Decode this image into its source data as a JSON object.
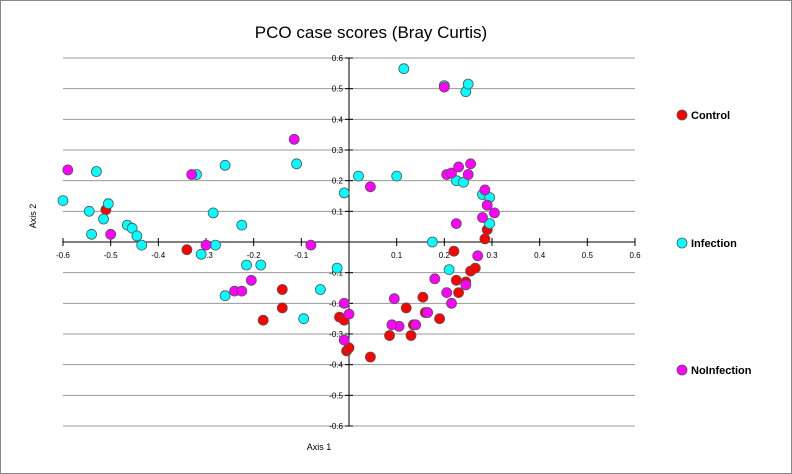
{
  "chart_data": {
    "type": "scatter",
    "title": "PCO case scores (Bray Curtis)",
    "xlabel": "Axis 1",
    "ylabel": "Axis 2",
    "xlim": [
      -0.6,
      0.6
    ],
    "ylim": [
      -0.6,
      0.6
    ],
    "x_ticks": [
      "-0.6",
      "-0.5",
      "-0.4",
      "-0.3",
      "-0.2",
      "-0.1",
      "0.1",
      "0.2",
      "0.3",
      "0.4",
      "0.5",
      "0.6"
    ],
    "y_ticks": [
      "0.6",
      "0.5",
      "0.4",
      "0.3",
      "0.2",
      "0.1",
      "-0.1",
      "-0.2",
      "-0.3",
      "-0.4",
      "-0.5",
      "-0.6"
    ],
    "grid": "horizontal",
    "legend_position": "right",
    "series": [
      {
        "name": "Control",
        "color": "#ff0000",
        "points": [
          [
            -0.51,
            0.105
          ],
          [
            -0.34,
            -0.025
          ],
          [
            -0.14,
            -0.155
          ],
          [
            -0.14,
            -0.215
          ],
          [
            -0.18,
            -0.255
          ],
          [
            -0.02,
            -0.245
          ],
          [
            -0.01,
            -0.255
          ],
          [
            -0.005,
            -0.355
          ],
          [
            0.0,
            -0.345
          ],
          [
            0.045,
            -0.375
          ],
          [
            0.085,
            -0.305
          ],
          [
            0.12,
            -0.215
          ],
          [
            0.13,
            -0.305
          ],
          [
            0.135,
            -0.27
          ],
          [
            0.155,
            -0.18
          ],
          [
            0.16,
            -0.23
          ],
          [
            0.19,
            -0.25
          ],
          [
            0.22,
            -0.03
          ],
          [
            0.225,
            -0.125
          ],
          [
            0.23,
            -0.165
          ],
          [
            0.245,
            -0.13
          ],
          [
            0.255,
            -0.095
          ],
          [
            0.265,
            -0.085
          ],
          [
            0.285,
            0.01
          ],
          [
            0.29,
            0.04
          ]
        ]
      },
      {
        "name": "Infection",
        "color": "#00ffff",
        "points": [
          [
            -0.6,
            0.135
          ],
          [
            -0.545,
            0.1
          ],
          [
            -0.54,
            0.025
          ],
          [
            -0.53,
            0.23
          ],
          [
            -0.515,
            0.075
          ],
          [
            -0.505,
            0.125
          ],
          [
            -0.465,
            0.055
          ],
          [
            -0.455,
            0.045
          ],
          [
            -0.445,
            0.02
          ],
          [
            -0.435,
            -0.01
          ],
          [
            -0.32,
            0.22
          ],
          [
            -0.31,
            -0.04
          ],
          [
            -0.285,
            0.095
          ],
          [
            -0.28,
            -0.01
          ],
          [
            -0.26,
            0.25
          ],
          [
            -0.26,
            -0.175
          ],
          [
            -0.225,
            0.055
          ],
          [
            -0.215,
            -0.075
          ],
          [
            -0.185,
            -0.075
          ],
          [
            -0.11,
            0.255
          ],
          [
            -0.06,
            -0.155
          ],
          [
            -0.095,
            -0.25
          ],
          [
            -0.025,
            -0.085
          ],
          [
            -0.01,
            0.16
          ],
          [
            0.02,
            0.215
          ],
          [
            0.1,
            0.215
          ],
          [
            0.115,
            0.565
          ],
          [
            0.175,
            0.0
          ],
          [
            0.2,
            0.51
          ],
          [
            0.21,
            -0.09
          ],
          [
            0.225,
            0.2
          ],
          [
            0.24,
            0.195
          ],
          [
            0.245,
            0.49
          ],
          [
            0.25,
            0.515
          ],
          [
            0.28,
            0.155
          ],
          [
            0.295,
            0.145
          ],
          [
            0.295,
            0.06
          ]
        ]
      },
      {
        "name": "NoInfection",
        "color": "#ff00ff",
        "points": [
          [
            -0.59,
            0.235
          ],
          [
            -0.5,
            0.025
          ],
          [
            -0.33,
            0.22
          ],
          [
            -0.3,
            -0.01
          ],
          [
            -0.24,
            -0.16
          ],
          [
            -0.225,
            -0.16
          ],
          [
            -0.205,
            -0.125
          ],
          [
            -0.115,
            0.335
          ],
          [
            -0.08,
            -0.01
          ],
          [
            -0.01,
            -0.2
          ],
          [
            -0.01,
            -0.32
          ],
          [
            0.0,
            -0.235
          ],
          [
            0.045,
            0.18
          ],
          [
            0.095,
            -0.185
          ],
          [
            0.105,
            -0.275
          ],
          [
            0.09,
            -0.27
          ],
          [
            0.14,
            -0.27
          ],
          [
            0.165,
            -0.23
          ],
          [
            0.18,
            -0.12
          ],
          [
            0.2,
            0.505
          ],
          [
            0.205,
            0.22
          ],
          [
            0.205,
            -0.165
          ],
          [
            0.215,
            0.225
          ],
          [
            0.215,
            -0.2
          ],
          [
            0.225,
            0.06
          ],
          [
            0.23,
            0.245
          ],
          [
            0.245,
            -0.14
          ],
          [
            0.25,
            0.22
          ],
          [
            0.255,
            0.255
          ],
          [
            0.27,
            -0.045
          ],
          [
            0.28,
            0.08
          ],
          [
            0.285,
            0.17
          ],
          [
            0.29,
            0.12
          ],
          [
            0.305,
            0.095
          ]
        ]
      }
    ]
  }
}
